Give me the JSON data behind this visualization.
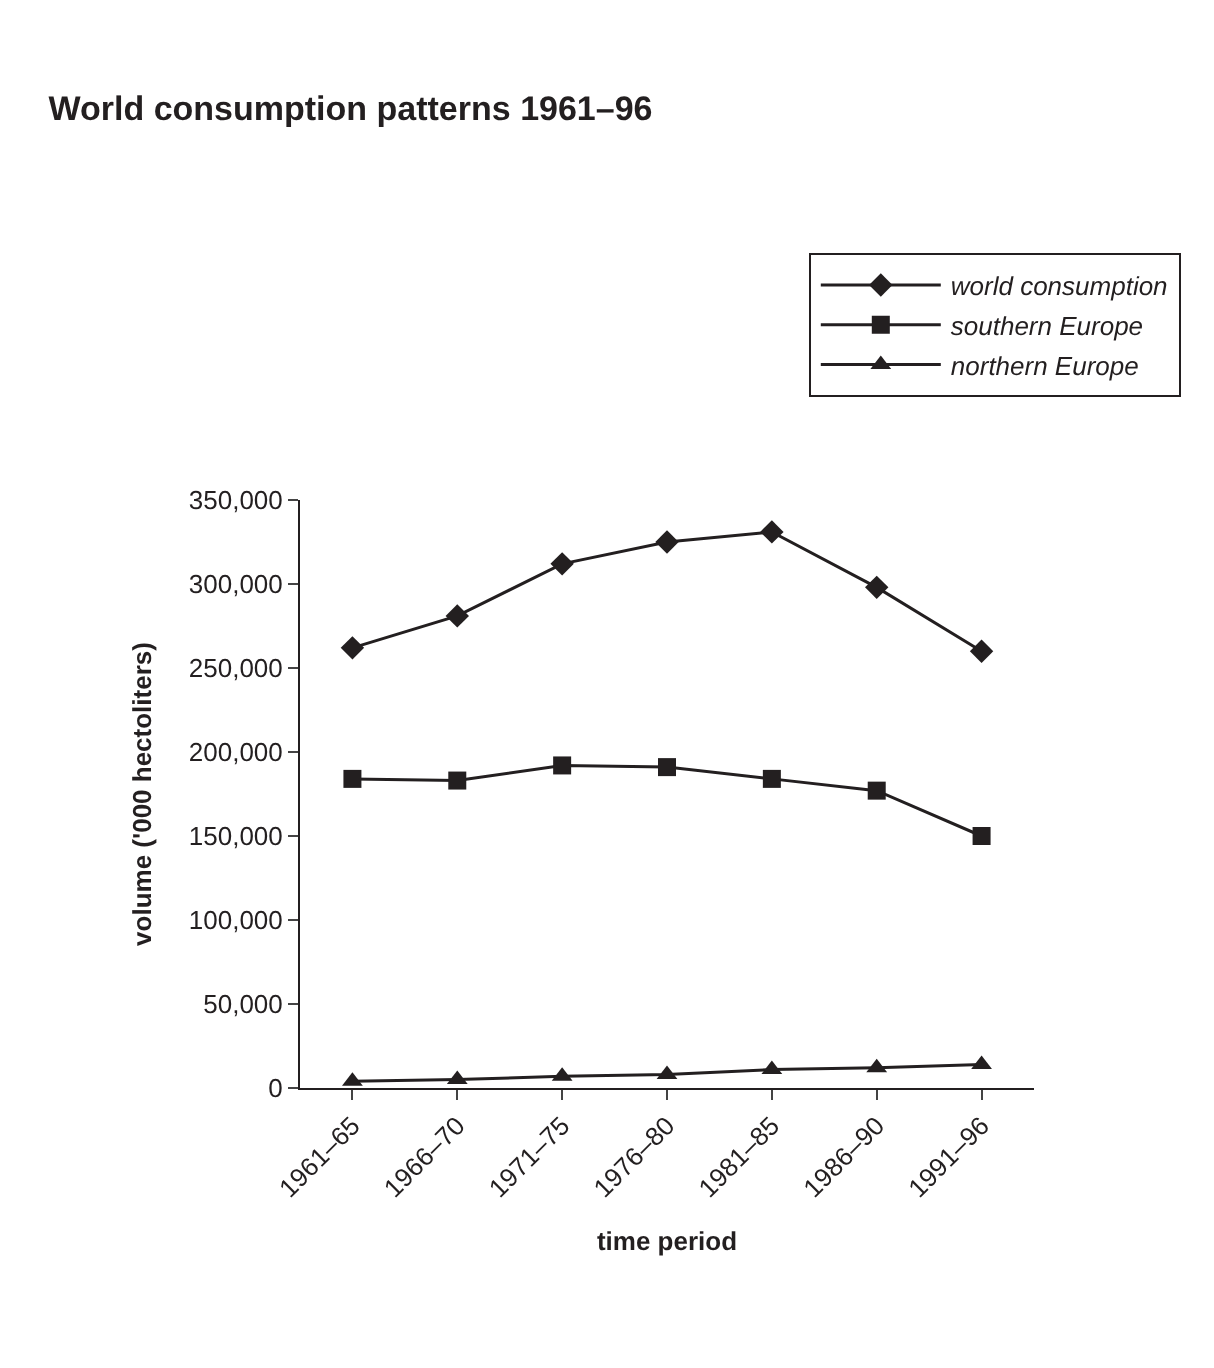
{
  "chart_data": {
    "type": "line",
    "title": "World consumption patterns 1961–96",
    "xlabel": "time period",
    "ylabel": "volume ('000 hectoliters)",
    "categories": [
      "1961–65",
      "1966–70",
      "1971–75",
      "1976–80",
      "1981–85",
      "1986–90",
      "1991–96"
    ],
    "series": [
      {
        "name": "world consumption",
        "color": "#231f20",
        "marker": "diamond",
        "values": [
          262000,
          281000,
          312000,
          325000,
          331000,
          298000,
          260000
        ]
      },
      {
        "name": "southern Europe",
        "color": "#231f20",
        "marker": "square",
        "values": [
          184000,
          183000,
          192000,
          191000,
          184000,
          177000,
          150000
        ]
      },
      {
        "name": "northern Europe",
        "color": "#231f20",
        "marker": "triangle",
        "values": [
          4000,
          5000,
          7000,
          8000,
          11000,
          12000,
          14000
        ]
      }
    ],
    "ylim": [
      0,
      350000
    ],
    "yticks": [
      {
        "value": 0,
        "label": "0"
      },
      {
        "value": 50000,
        "label": "50,000"
      },
      {
        "value": 100000,
        "label": "100,000"
      },
      {
        "value": 150000,
        "label": "150,000"
      },
      {
        "value": 200000,
        "label": "200,000"
      },
      {
        "value": 250000,
        "label": "250,000"
      },
      {
        "value": 300000,
        "label": "300,000"
      },
      {
        "value": 350000,
        "label": "350,000"
      }
    ],
    "legend": "top right",
    "line_style": "solid"
  }
}
